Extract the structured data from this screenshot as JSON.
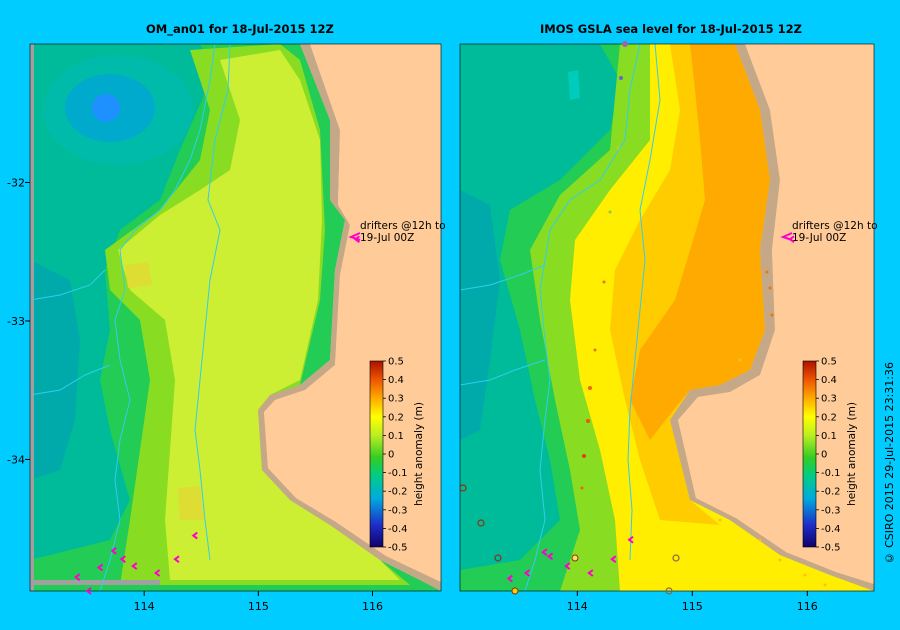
{
  "panels": [
    {
      "title": "OM_an01  for 18-Jul-2015 12Z",
      "drifter_note_line1": "drifters @12h to",
      "drifter_note_line2": "19-Jul 00Z"
    },
    {
      "title": "IMOS GSLA sea level  for 18-Jul-2015 12Z",
      "drifter_note_line1": "drifters @12h to",
      "drifter_note_line2": "19-Jul 00Z"
    }
  ],
  "credit": "© CSIRO 2015   29-Jul-2015 23:31:36",
  "colors": {
    "background": "#00ccff",
    "land": "#ffcc99",
    "coast_shelf": "#c4a888",
    "drifter": "#ff00cc",
    "bathymetry_contour": "#33ccee"
  },
  "chart_data": [
    {
      "type": "heatmap",
      "title": "OM_an01  for 18-Jul-2015 12Z",
      "xlabel": "",
      "ylabel": "",
      "x_ticks": [
        "114",
        "115",
        "116"
      ],
      "y_ticks": [
        "-32",
        "-33",
        "-34"
      ],
      "xlim": [
        113.0,
        116.6
      ],
      "ylim": [
        -34.95,
        -31.0
      ],
      "colorbar": {
        "label": "height anomaly (m)",
        "ticks": [
          "0.5",
          "0.4",
          "0.3",
          "0.2",
          "0.1",
          "0",
          "-0.1",
          "-0.2",
          "-0.3",
          "-0.4",
          "-0.5"
        ],
        "range": [
          -0.5,
          0.5
        ]
      },
      "drifters": [
        {
          "lon": 114.43,
          "lat": -34.55
        },
        {
          "lon": 114.27,
          "lat": -34.72
        },
        {
          "lon": 114.1,
          "lat": -34.82
        },
        {
          "lon": 113.8,
          "lat": -34.72
        },
        {
          "lon": 113.9,
          "lat": -34.77
        },
        {
          "lon": 113.6,
          "lat": -34.78
        },
        {
          "lon": 113.4,
          "lat": -34.85
        },
        {
          "lon": 113.72,
          "lat": -34.66
        },
        {
          "lon": 113.5,
          "lat": -34.95
        },
        {
          "lon": 115.85,
          "lat": -32.41
        }
      ]
    },
    {
      "type": "heatmap",
      "title": "IMOS GSLA sea level  for 18-Jul-2015 12Z",
      "xlabel": "",
      "ylabel": "",
      "x_ticks": [
        "114",
        "115",
        "116"
      ],
      "y_ticks": [],
      "xlim": [
        112.98,
        116.58
      ],
      "ylim": [
        -34.95,
        -31.0
      ],
      "colorbar": {
        "label": "height anomaly (m)",
        "ticks": [
          "0.5",
          "0.4",
          "0.3",
          "0.2",
          "0.1",
          "0",
          "-0.1",
          "-0.2",
          "-0.3",
          "-0.4",
          "-0.5"
        ],
        "range": [
          -0.5,
          0.5
        ]
      },
      "drifters": [
        {
          "lon": 114.45,
          "lat": -34.58
        },
        {
          "lon": 114.3,
          "lat": -34.72
        },
        {
          "lon": 114.1,
          "lat": -34.82
        },
        {
          "lon": 113.75,
          "lat": -34.7
        },
        {
          "lon": 113.9,
          "lat": -34.77
        },
        {
          "lon": 113.55,
          "lat": -34.82
        },
        {
          "lon": 113.4,
          "lat": -34.86
        },
        {
          "lon": 113.7,
          "lat": -34.67
        },
        {
          "lon": 115.85,
          "lat": -32.41
        }
      ]
    }
  ]
}
